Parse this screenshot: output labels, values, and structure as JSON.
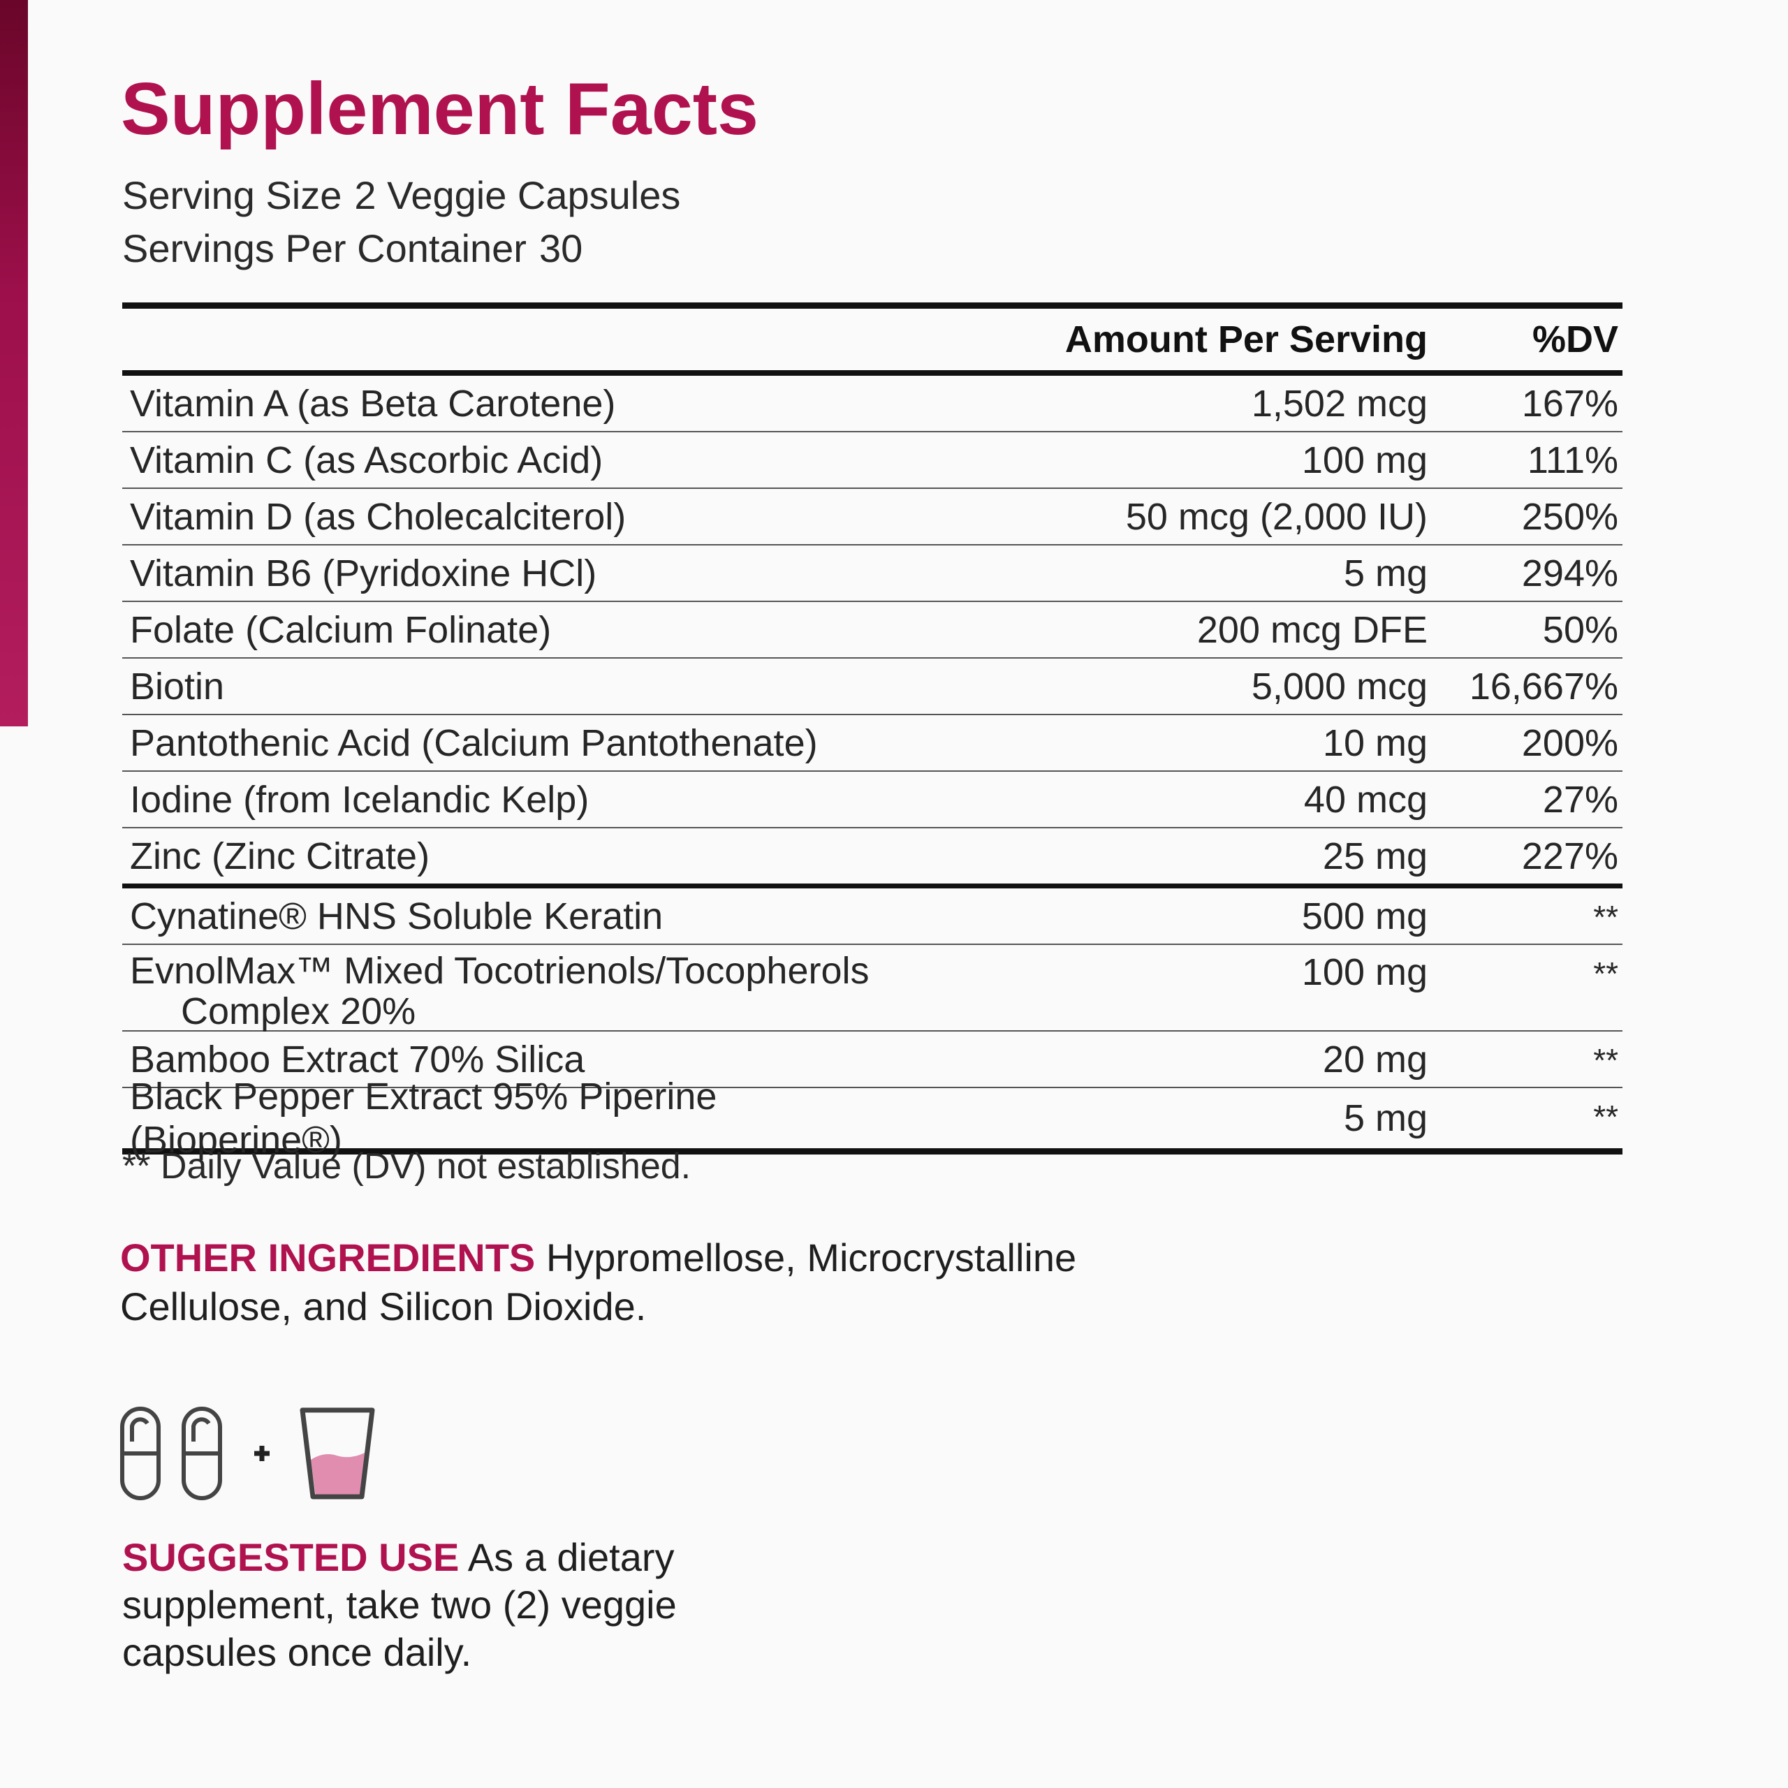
{
  "title": "Supplement Facts",
  "serving": {
    "size_label": "Serving Size",
    "size_value": "2 Veggie Capsules",
    "per_container_label": "Servings Per Container",
    "per_container_value": "30"
  },
  "table": {
    "headers": {
      "amount": "Amount Per Serving",
      "dv": "%DV"
    },
    "rows": [
      {
        "name": "Vitamin A (as Beta Carotene)",
        "amount": "1,502 mcg",
        "dv": "167%"
      },
      {
        "name": "Vitamin C (as Ascorbic Acid)",
        "amount": "100 mg",
        "dv": "111%"
      },
      {
        "name": "Vitamin D (as Cholecalciterol)",
        "amount": "50 mcg (2,000 IU)",
        "dv": "250%"
      },
      {
        "name": "Vitamin B6 (Pyridoxine HCl)",
        "amount": "5 mg",
        "dv": "294%"
      },
      {
        "name": "Folate (Calcium Folinate)",
        "amount": "200 mcg DFE",
        "dv": "50%"
      },
      {
        "name": "Biotin",
        "amount": "5,000 mcg",
        "dv": "16,667%"
      },
      {
        "name": "Pantothenic Acid (Calcium Pantothenate)",
        "amount": "10 mg",
        "dv": "200%"
      },
      {
        "name": "Iodine (from Icelandic Kelp)",
        "amount": "40 mcg",
        "dv": "27%"
      },
      {
        "name": "Zinc (Zinc Citrate)",
        "amount": "25 mg",
        "dv": "227%"
      }
    ],
    "proprietary_rows": [
      {
        "name": "Cynatine® HNS Soluble Keratin",
        "amount": "500 mg",
        "dv": "**"
      },
      {
        "name_line1": "EvnolMax™ Mixed Tocotrienols/Tocopherols",
        "name_line2": "Complex 20%",
        "amount": "100 mg",
        "dv": "**"
      },
      {
        "name": "Bamboo Extract 70% Silica",
        "amount": "20 mg",
        "dv": "**"
      },
      {
        "name": "Black Pepper Extract 95% Piperine (Bioperine®)",
        "amount": "5 mg",
        "dv": "**"
      }
    ]
  },
  "footnote": "** Daily Value (DV) not established.",
  "other_ingredients": {
    "label": "OTHER INGREDIENTS",
    "text": "Hypromellose, Microcrystalline Cellulose, and Silicon Dioxide."
  },
  "icons": {
    "capsule": "capsule-icon",
    "plus": "+",
    "glass": "water-glass-icon",
    "liquid_color": "#e08db0",
    "stroke_color": "#444444"
  },
  "suggested_use": {
    "label": "SUGGESTED USE",
    "text": "As a dietary supplement, take two (2) veggie capsules once daily."
  },
  "colors": {
    "accent": "#b0124f",
    "bar_top": "#6a0629",
    "bar_bottom": "#b31d5e"
  }
}
